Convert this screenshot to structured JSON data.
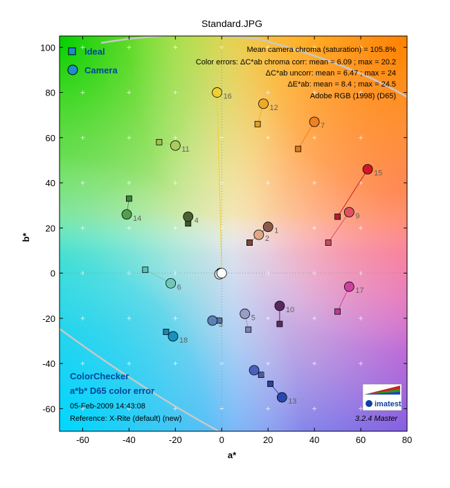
{
  "chart_data": {
    "type": "scatter",
    "title": "Standard.JPG",
    "xlabel": "a*",
    "ylabel": "b*",
    "xlim": [
      -70,
      80
    ],
    "ylim": [
      -70,
      105
    ],
    "xticks": [
      -60,
      -40,
      -20,
      0,
      20,
      40,
      60,
      80
    ],
    "yticks": [
      -60,
      -40,
      -20,
      0,
      20,
      40,
      60,
      80,
      100
    ],
    "grid": true,
    "legend": {
      "placement": "top-left",
      "entries": [
        {
          "label": "Ideal",
          "marker": "square"
        },
        {
          "label": "Camera",
          "marker": "circle"
        }
      ]
    },
    "annotations": {
      "stats": [
        "Mean camera chroma (saturation) = 105.8%",
        "Color errors:  ΔC*ab chroma corr:  mean = 6.09 ;  max = 20.2",
        "ΔC*ab uncorr:  mean = 6.47 ;  max = 24",
        "ΔE*ab:  mean = 8.4 ;  max = 24.5",
        "Adobe RGB (1998) (D65)"
      ],
      "bottom_left_title": [
        "ColorChecker",
        "a*b* D65 color error"
      ],
      "date": "05-Feb-2009 14:43:08",
      "reference": "Reference: X-Rite (default) (new)",
      "version": "3.2.4  Master",
      "logo_text": "imatest"
    },
    "series": [
      {
        "name": "Ideal",
        "points": [
          {
            "id": 1,
            "a": 12,
            "b": 13.5,
            "color": "#7a4a3a"
          },
          {
            "id": 2,
            "a": 12,
            "b": 13.5,
            "color": "#7a4a3a"
          },
          {
            "id": 3,
            "a": -1,
            "b": -21,
            "color": "#5a78a8"
          },
          {
            "id": 4,
            "a": -14.5,
            "b": 22,
            "color": "#3f5a2a"
          },
          {
            "id": 5,
            "a": 11.5,
            "b": -25,
            "color": "#7d80b5"
          },
          {
            "id": 6,
            "a": -33,
            "b": 1.5,
            "color": "#60c0ac"
          },
          {
            "id": 7,
            "a": 33,
            "b": 55,
            "color": "#e07820"
          },
          {
            "id": 8,
            "a": 17,
            "b": -45,
            "color": "#4a58b0"
          },
          {
            "id": 9,
            "a": 46,
            "b": 13.5,
            "color": "#c05060"
          },
          {
            "id": 10,
            "a": 25,
            "b": -22.5,
            "color": "#5a2a60"
          },
          {
            "id": 11,
            "a": -27,
            "b": 58,
            "color": "#a0c050"
          },
          {
            "id": 12,
            "a": 15.5,
            "b": 66,
            "color": "#e0a028"
          },
          {
            "id": 13,
            "a": 21,
            "b": -49,
            "color": "#2840a0"
          },
          {
            "id": 14,
            "a": -40,
            "b": 33,
            "color": "#408040"
          },
          {
            "id": 15,
            "a": 50,
            "b": 25,
            "color": "#b02030"
          },
          {
            "id": 16,
            "a": 0,
            "b": 0,
            "color": "#e8c820"
          },
          {
            "id": 17,
            "a": 50,
            "b": -17,
            "color": "#c03890"
          },
          {
            "id": 18,
            "a": -24,
            "b": -26,
            "color": "#1888b0"
          }
        ]
      },
      {
        "name": "Camera",
        "points": [
          {
            "id": 1,
            "a": 20,
            "b": 20.5,
            "color": "#8a5a4a"
          },
          {
            "id": 2,
            "a": 16,
            "b": 17,
            "color": "#e0a888"
          },
          {
            "id": 3,
            "a": -4,
            "b": -21,
            "color": "#5a80b8"
          },
          {
            "id": 4,
            "a": -14.5,
            "b": 25,
            "color": "#4a6030"
          },
          {
            "id": 5,
            "a": 10,
            "b": -18,
            "color": "#9a9cc8"
          },
          {
            "id": 6,
            "a": -22,
            "b": -4.5,
            "color": "#70c8b8"
          },
          {
            "id": 7,
            "a": 40,
            "b": 67,
            "color": "#f08020"
          },
          {
            "id": 8,
            "a": 14,
            "b": -43,
            "color": "#4a60c0"
          },
          {
            "id": 9,
            "a": 55,
            "b": 27,
            "color": "#e05060"
          },
          {
            "id": 10,
            "a": 25,
            "b": -14.5,
            "color": "#582860"
          },
          {
            "id": 11,
            "a": -20,
            "b": 56.5,
            "color": "#a8cc60"
          },
          {
            "id": 12,
            "a": 18,
            "b": 75,
            "color": "#f0a828"
          },
          {
            "id": 13,
            "a": 26,
            "b": -55,
            "color": "#2848b0"
          },
          {
            "id": 14,
            "a": -41,
            "b": 26,
            "color": "#50a050"
          },
          {
            "id": 15,
            "a": 63,
            "b": 46,
            "color": "#d01828"
          },
          {
            "id": 16,
            "a": -2,
            "b": 80,
            "color": "#f0d030"
          },
          {
            "id": 17,
            "a": 55,
            "b": -6,
            "color": "#d040a0"
          },
          {
            "id": 18,
            "a": -21,
            "b": -28,
            "color": "#1890c0"
          },
          {
            "id": 19,
            "a": 0,
            "b": 0,
            "color": "#ffffff"
          },
          {
            "id": 20,
            "a": -1,
            "b": -0.5,
            "color": "#d8d8d8"
          },
          {
            "id": 21,
            "a": -0.5,
            "b": 0,
            "color": "#a8a8a8"
          },
          {
            "id": 22,
            "a": -0.5,
            "b": 0,
            "color": "#787878"
          },
          {
            "id": 23,
            "a": -0.5,
            "b": 0,
            "color": "#505050"
          },
          {
            "id": 24,
            "a": -0.5,
            "b": 0,
            "color": "#282828"
          }
        ]
      }
    ]
  }
}
